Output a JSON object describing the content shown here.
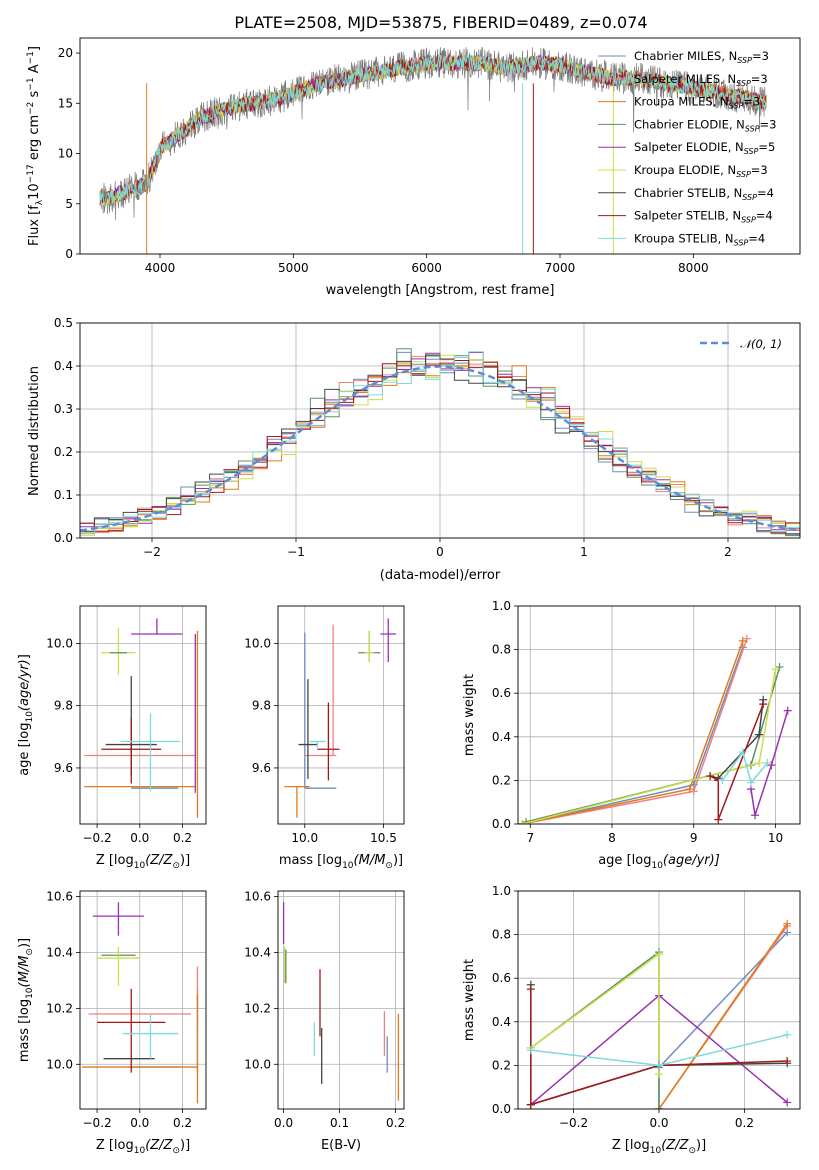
{
  "figure": {
    "title": "PLATE=2508, MJD=53875, FIBERID=0489, z=0.074"
  },
  "series_styles": [
    {
      "name": "Chabrier MILES",
      "color": "#6c8ebf"
    },
    {
      "name": "Salpeter MILES",
      "color": "#f08080"
    },
    {
      "name": "Kroupa MILES",
      "color": "#e07b1a"
    },
    {
      "name": "Chabrier ELODIE",
      "color": "#5f8f5f"
    },
    {
      "name": "Salpeter ELODIE",
      "color": "#9b30b0"
    },
    {
      "name": "Kroupa ELODIE",
      "color": "#c8e04a"
    },
    {
      "name": "Chabrier STELIB",
      "color": "#444444"
    },
    {
      "name": "Salpeter STELIB",
      "color": "#a01818"
    },
    {
      "name": "Kroupa STELIB",
      "color": "#7fd9d9"
    }
  ],
  "chart_data": [
    {
      "id": "spectrum",
      "type": "line",
      "title": "PLATE=2508, MJD=53875, FIBERID=0489, z=0.074",
      "xlabel": "wavelength [Angstrom, rest frame]",
      "ylabel_main": "Flux [f",
      "ylabel_sub": "λ",
      "ylabel_rest": "10",
      "ylabel_exp1": "−17",
      "ylabel_unit": " erg cm",
      "ylabel_exp2": "−2",
      "ylabel_s": " s",
      "ylabel_exp3": "−1",
      "ylabel_end": " A",
      "ylabel_exp4": "−1",
      "ylabel_close": "]",
      "xlim": [
        3400,
        8800
      ],
      "ylim": [
        0,
        21.5
      ],
      "xticks": [
        "4000",
        "5000",
        "6000",
        "7000",
        "8000"
      ],
      "xtick_values": [
        4000,
        5000,
        6000,
        7000,
        8000
      ],
      "yticks": [
        "0",
        "5",
        "10",
        "15",
        "20"
      ],
      "ytick_values": [
        0,
        5,
        10,
        15,
        20
      ],
      "legend": [
        {
          "label": "Chabrier MILES, N",
          "sub": "SSP",
          "suffix": "=3"
        },
        {
          "label": "Salpeter MILES, N",
          "sub": "SSP",
          "suffix": "=3"
        },
        {
          "label": "Kroupa MILES, N",
          "sub": "SSP",
          "suffix": "=3"
        },
        {
          "label": "Chabrier ELODIE, N",
          "sub": "SSP",
          "suffix": "=3"
        },
        {
          "label": "Salpeter ELODIE, N",
          "sub": "SSP",
          "suffix": "=5"
        },
        {
          "label": "Kroupa ELODIE, N",
          "sub": "SSP",
          "suffix": "=3"
        },
        {
          "label": "Chabrier STELIB, N",
          "sub": "SSP",
          "suffix": "=4"
        },
        {
          "label": "Salpeter STELIB, N",
          "sub": "SSP",
          "suffix": "=4"
        },
        {
          "label": "Kroupa STELIB, N",
          "sub": "SSP",
          "suffix": "=4"
        }
      ],
      "legend_position": "top-right",
      "continuum_x": [
        3550,
        3600,
        3700,
        3800,
        3900,
        4000,
        4100,
        4200,
        4300,
        4500,
        4700,
        4900,
        5000,
        5200,
        5400,
        5600,
        5800,
        6000,
        6200,
        6400,
        6600,
        6800,
        7000,
        7200,
        7400,
        7600,
        7800,
        8000,
        8200,
        8400,
        8550
      ],
      "continuum_y": [
        5.5,
        5.5,
        6.0,
        6.5,
        7.0,
        10.5,
        11.5,
        12.5,
        13.5,
        14.5,
        15.0,
        15.5,
        16.0,
        17.0,
        17.5,
        18.0,
        18.5,
        19.0,
        19.0,
        19.0,
        18.5,
        19.0,
        18.8,
        18.0,
        17.5,
        17.5,
        17.0,
        16.5,
        16.0,
        15.5,
        15.0
      ]
    },
    {
      "id": "residuals",
      "type": "histogram",
      "xlabel": "(data-model)/error",
      "ylabel": "Normed distribution",
      "xlim": [
        -2.5,
        2.5
      ],
      "ylim": [
        0,
        0.5
      ],
      "xticks": [
        "−2",
        "−1",
        "0",
        "1",
        "2"
      ],
      "xtick_values": [
        -2,
        -1,
        0,
        1,
        2
      ],
      "yticks": [
        "0.0",
        "0.1",
        "0.2",
        "0.3",
        "0.4",
        "0.5"
      ],
      "ytick_values": [
        0,
        0.1,
        0.2,
        0.3,
        0.4,
        0.5
      ],
      "reference_curve": {
        "label": "𝒩(0, 1)",
        "mean": 0,
        "sigma": 1,
        "color": "#5b8bd9"
      },
      "bin_width": 0.1
    },
    {
      "id": "age-vs-Z",
      "type": "errorbar",
      "xlabel": "Z [log",
      "xlabel_sub": "10",
      "xlabel_rest": "(Z/Z",
      "xlabel_sun": "⊙",
      "xlabel_end": ")]",
      "ylabel": "age  [log10(age/yr)]",
      "xlim": [
        -0.28,
        0.31
      ],
      "ylim": [
        9.42,
        10.12
      ],
      "xticks": [
        "−0.2",
        "0.0",
        "0.2"
      ],
      "xtick_values": [
        -0.2,
        0.0,
        0.2
      ],
      "yticks": [
        "9.6",
        "9.8",
        "10.0"
      ],
      "ytick_values": [
        9.6,
        9.8,
        10.0
      ],
      "points": [
        {
          "series": 0,
          "x": 0.07,
          "y": 9.535,
          "xerr": 0.11,
          "yerr_lo": 0.0,
          "yerr_hi": 0.0
        },
        {
          "series": 1,
          "x": 0.0,
          "y": 9.64,
          "xerr": 0.26,
          "yerr_lo": 0.0,
          "yerr_hi": 0.0
        },
        {
          "series": 2,
          "x": 0.0,
          "y": 9.54,
          "xerr": 0.26,
          "yerr_lo": 0.0,
          "yerr_hi": 0.0
        },
        {
          "series": 2,
          "x": 0.27,
          "y": 9.7,
          "xerr": 0.0,
          "yerr_lo": 0.26,
          "yerr_hi": 0.34
        },
        {
          "series": 4,
          "x": 0.08,
          "y": 10.03,
          "xerr": 0.12,
          "yerr_lo": 0.0,
          "yerr_hi": 0.05
        },
        {
          "series": 4,
          "x": 0.26,
          "y": 9.6,
          "xerr": 0.0,
          "yerr_lo": 0.08,
          "yerr_hi": 0.43
        },
        {
          "series": 5,
          "x": -0.1,
          "y": 9.97,
          "xerr": 0.08,
          "yerr_lo": 0.07,
          "yerr_hi": 0.08
        },
        {
          "series": 3,
          "x": -0.1,
          "y": 9.97,
          "xerr": 0.04,
          "yerr_lo": 0.0,
          "yerr_hi": 0.0
        },
        {
          "series": 6,
          "x": -0.04,
          "y": 9.675,
          "xerr": 0.12,
          "yerr_lo": 0.1,
          "yerr_hi": 0.22
        },
        {
          "series": 7,
          "x": -0.04,
          "y": 9.66,
          "xerr": 0.14,
          "yerr_lo": 0.11,
          "yerr_hi": 0.1
        },
        {
          "series": 8,
          "x": 0.05,
          "y": 9.685,
          "xerr": 0.14,
          "yerr_lo": 0.16,
          "yerr_hi": 0.09
        }
      ]
    },
    {
      "id": "age-vs-mass",
      "type": "errorbar",
      "xlabel": "mass [log",
      "xlabel_sub": "10",
      "xlabel_rest": "(M/M",
      "xlabel_sun": "⊙",
      "xlabel_end": ")]",
      "ylabel": "",
      "xlim": [
        9.83,
        10.63
      ],
      "ylim": [
        9.42,
        10.12
      ],
      "xticks": [
        "10.0",
        "10.5"
      ],
      "xtick_values": [
        10.0,
        10.5
      ],
      "yticks": [
        "9.6",
        "9.8",
        "10.0"
      ],
      "ytick_values": [
        9.6,
        9.8,
        10.0
      ],
      "points": [
        {
          "series": 0,
          "x": 10.0,
          "y": 9.535,
          "xerr": 0.0,
          "yerr_lo": 0.0,
          "yerr_hi": 0.5
        },
        {
          "series": 0,
          "x": 10.1,
          "y": 9.535,
          "xerr": 0.1,
          "yerr_lo": 0.0,
          "yerr_hi": 0.0
        },
        {
          "series": 1,
          "x": 10.18,
          "y": 9.64,
          "xerr": 0.0,
          "yerr_lo": 0.0,
          "yerr_hi": 0.42
        },
        {
          "series": 1,
          "x": 10.1,
          "y": 9.64,
          "xerr": 0.1,
          "yerr_lo": 0.0,
          "yerr_hi": 0.0
        },
        {
          "series": 2,
          "x": 9.95,
          "y": 9.54,
          "xerr": 0.08,
          "yerr_lo": 0.1,
          "yerr_hi": 0.0
        },
        {
          "series": 3,
          "x": 10.41,
          "y": 9.97,
          "xerr": 0.07,
          "yerr_lo": 0.03,
          "yerr_hi": 0.07
        },
        {
          "series": 5,
          "x": 10.41,
          "y": 9.97,
          "xerr": 0.03,
          "yerr_lo": 0.03,
          "yerr_hi": 0.07
        },
        {
          "series": 4,
          "x": 10.53,
          "y": 10.03,
          "xerr": 0.05,
          "yerr_lo": 0.09,
          "yerr_hi": 0.05
        },
        {
          "series": 6,
          "x": 10.02,
          "y": 9.675,
          "xerr": 0.06,
          "yerr_lo": 0.11,
          "yerr_hi": 0.21
        },
        {
          "series": 7,
          "x": 10.15,
          "y": 9.66,
          "xerr": 0.07,
          "yerr_lo": 0.1,
          "yerr_hi": 0.15
        },
        {
          "series": 8,
          "x": 10.08,
          "y": 9.685,
          "xerr": 0.05,
          "yerr_lo": 0.02,
          "yerr_hi": 0.0
        }
      ]
    },
    {
      "id": "massweight-vs-age",
      "type": "line",
      "xlabel": "age  [log",
      "xlabel_sub": "10",
      "xlabel_rest": "(age/yr)]",
      "ylabel": "mass weight",
      "xlim": [
        6.85,
        10.3
      ],
      "ylim": [
        0,
        1.0
      ],
      "xticks": [
        "7",
        "8",
        "9",
        "10"
      ],
      "xtick_values": [
        7,
        8,
        9,
        10
      ],
      "yticks": [
        "0.0",
        "0.2",
        "0.4",
        "0.6",
        "0.8",
        "1.0"
      ],
      "ytick_values": [
        0,
        0.2,
        0.4,
        0.6,
        0.8,
        1.0
      ],
      "series": [
        {
          "series": 0,
          "x": [
            6.9,
            9.0,
            9.6
          ],
          "y": [
            0.0,
            0.18,
            0.81
          ]
        },
        {
          "series": 1,
          "x": [
            6.9,
            9.0,
            9.65
          ],
          "y": [
            0.0,
            0.15,
            0.85
          ]
        },
        {
          "series": 2,
          "x": [
            6.9,
            8.95,
            9.6
          ],
          "y": [
            0.0,
            0.16,
            0.84
          ]
        },
        {
          "series": 3,
          "x": [
            6.95,
            9.7,
            10.05
          ],
          "y": [
            0.01,
            0.27,
            0.72
          ]
        },
        {
          "series": 4,
          "x": [
            9.7,
            9.75,
            9.95,
            10.15
          ],
          "y": [
            0.16,
            0.04,
            0.27,
            0.52
          ]
        },
        {
          "series": 5,
          "x": [
            6.9,
            9.8,
            10.0
          ],
          "y": [
            0.0,
            0.28,
            0.71
          ]
        },
        {
          "series": 6,
          "x": [
            9.2,
            9.3,
            9.8,
            9.85
          ],
          "y": [
            0.22,
            0.21,
            0.41,
            0.57
          ]
        },
        {
          "series": 7,
          "x": [
            9.2,
            9.3,
            9.3,
            9.85
          ],
          "y": [
            0.22,
            0.2,
            0.02,
            0.55
          ]
        },
        {
          "series": 8,
          "x": [
            9.35,
            9.6,
            9.7,
            9.9
          ],
          "y": [
            0.2,
            0.33,
            0.19,
            0.28
          ]
        }
      ]
    },
    {
      "id": "mass-vs-Z",
      "type": "errorbar",
      "xlabel": "Z [log",
      "xlabel_sub": "10",
      "xlabel_rest": "(Z/Z",
      "xlabel_sun": "⊙",
      "xlabel_end": ")]",
      "ylabel": "mass [log10(M/M⊙)]",
      "xlim": [
        -0.28,
        0.31
      ],
      "ylim": [
        9.84,
        10.62
      ],
      "xticks": [
        "−0.2",
        "0.0",
        "0.2"
      ],
      "xtick_values": [
        -0.2,
        0.0,
        0.2
      ],
      "yticks": [
        "10.0",
        "10.2",
        "10.4",
        "10.6"
      ],
      "ytick_values": [
        10.0,
        10.2,
        10.4,
        10.6
      ],
      "points": [
        {
          "series": 0,
          "x": 0.07,
          "y": 9.99,
          "xerr": 0.12,
          "yerr_lo": 0.0,
          "yerr_hi": 0.0
        },
        {
          "series": 0,
          "x": 0.27,
          "y": 10.1,
          "xerr": 0.0,
          "yerr_lo": 0.13,
          "yerr_hi": 0.17
        },
        {
          "series": 1,
          "x": 0.0,
          "y": 10.18,
          "xerr": 0.24,
          "yerr_lo": 0.0,
          "yerr_hi": 0.0
        },
        {
          "series": 1,
          "x": 0.27,
          "y": 10.2,
          "xerr": 0.0,
          "yerr_lo": 0.06,
          "yerr_hi": 0.15
        },
        {
          "series": 2,
          "x": 0.0,
          "y": 9.99,
          "xerr": 0.27,
          "yerr_lo": 0.0,
          "yerr_hi": 0.0
        },
        {
          "series": 2,
          "x": 0.27,
          "y": 10.05,
          "xerr": 0.0,
          "yerr_lo": 0.19,
          "yerr_hi": 0.2
        },
        {
          "series": 4,
          "x": -0.1,
          "y": 10.53,
          "xerr": 0.12,
          "yerr_lo": 0.07,
          "yerr_hi": 0.05
        },
        {
          "series": 3,
          "x": -0.1,
          "y": 10.39,
          "xerr": 0.08,
          "yerr_lo": 0.0,
          "yerr_hi": 0.0
        },
        {
          "series": 5,
          "x": -0.1,
          "y": 10.38,
          "xerr": 0.1,
          "yerr_lo": 0.1,
          "yerr_hi": 0.04
        },
        {
          "series": 6,
          "x": -0.05,
          "y": 10.02,
          "xerr": 0.12,
          "yerr_lo": 0.0,
          "yerr_hi": 0.0
        },
        {
          "series": 7,
          "x": -0.04,
          "y": 10.15,
          "xerr": 0.16,
          "yerr_lo": 0.18,
          "yerr_hi": 0.12
        },
        {
          "series": 8,
          "x": 0.05,
          "y": 10.11,
          "xerr": 0.13,
          "yerr_lo": 0.09,
          "yerr_hi": 0.07
        }
      ]
    },
    {
      "id": "mass-vs-EBV",
      "type": "errorbar",
      "xlabel": "E(B-V)",
      "ylabel": "",
      "xlim": [
        -0.01,
        0.215
      ],
      "ylim": [
        9.84,
        10.62
      ],
      "xticks": [
        "0.0",
        "0.1",
        "0.2"
      ],
      "xtick_values": [
        0.0,
        0.1,
        0.2
      ],
      "yticks": [
        "10.0",
        "10.2",
        "10.4",
        "10.6"
      ],
      "ytick_values": [
        10.0,
        10.2,
        10.4,
        10.6
      ],
      "points": [
        {
          "series": 4,
          "x": 0.0,
          "y": 10.5,
          "xerr": 0.0,
          "yerr_lo": 0.07,
          "yerr_hi": 0.08
        },
        {
          "series": 5,
          "x": 0.002,
          "y": 10.35,
          "xerr": 0.0,
          "yerr_lo": 0.06,
          "yerr_hi": 0.07
        },
        {
          "series": 3,
          "x": 0.004,
          "y": 10.35,
          "xerr": 0.0,
          "yerr_lo": 0.06,
          "yerr_hi": 0.06
        },
        {
          "series": 8,
          "x": 0.055,
          "y": 10.08,
          "xerr": 0.0,
          "yerr_lo": 0.05,
          "yerr_hi": 0.07
        },
        {
          "series": 7,
          "x": 0.065,
          "y": 10.2,
          "xerr": 0.0,
          "yerr_lo": 0.1,
          "yerr_hi": 0.14
        },
        {
          "series": 6,
          "x": 0.068,
          "y": 10.05,
          "xerr": 0.0,
          "yerr_lo": 0.12,
          "yerr_hi": 0.08
        },
        {
          "series": 1,
          "x": 0.18,
          "y": 10.19,
          "xerr": 0.0,
          "yerr_lo": 0.16,
          "yerr_hi": 0.0
        },
        {
          "series": 0,
          "x": 0.185,
          "y": 10.05,
          "xerr": 0.0,
          "yerr_lo": 0.08,
          "yerr_hi": 0.05
        },
        {
          "series": 2,
          "x": 0.205,
          "y": 10.03,
          "xerr": 0.0,
          "yerr_lo": 0.16,
          "yerr_hi": 0.15
        }
      ]
    },
    {
      "id": "massweight-vs-Z",
      "type": "line",
      "xlabel": "Z [log",
      "xlabel_sub": "10",
      "xlabel_rest": "(Z/Z",
      "xlabel_sun": "⊙",
      "xlabel_end": ")]",
      "ylabel": "mass weight",
      "xlim": [
        -0.33,
        0.33
      ],
      "ylim": [
        0,
        1.0
      ],
      "xticks": [
        "−0.2",
        "0.0",
        "0.2"
      ],
      "xtick_values": [
        -0.2,
        0.0,
        0.2
      ],
      "yticks": [
        "0.0",
        "0.2",
        "0.4",
        "0.6",
        "0.8",
        "1.0"
      ],
      "ytick_values": [
        0,
        0.2,
        0.4,
        0.6,
        0.8,
        1.0
      ],
      "series": [
        {
          "series": 0,
          "x": [
            0.0,
            0.0,
            0.3
          ],
          "y": [
            0.0,
            0.19,
            0.81
          ]
        },
        {
          "series": 1,
          "x": [
            0.0,
            0.3
          ],
          "y": [
            0.0,
            0.84
          ]
        },
        {
          "series": 2,
          "x": [
            0.0,
            0.3
          ],
          "y": [
            0.0,
            0.85
          ]
        },
        {
          "series": 3,
          "x": [
            -0.3,
            0.0,
            0.0
          ],
          "y": [
            0.28,
            0.72,
            0.0
          ]
        },
        {
          "series": 4,
          "x": [
            -0.3,
            0.0,
            0.3
          ],
          "y": [
            0.02,
            0.52,
            0.03
          ]
        },
        {
          "series": 5,
          "x": [
            -0.3,
            0.0,
            0.0
          ],
          "y": [
            0.28,
            0.71,
            0.16
          ]
        },
        {
          "series": 6,
          "x": [
            -0.3,
            -0.3,
            0.0,
            0.3
          ],
          "y": [
            0.57,
            0.02,
            0.2,
            0.21
          ]
        },
        {
          "series": 7,
          "x": [
            -0.3,
            -0.3,
            0.0,
            0.3
          ],
          "y": [
            0.55,
            0.02,
            0.2,
            0.22
          ]
        },
        {
          "series": 8,
          "x": [
            -0.3,
            0.0,
            0.3
          ],
          "y": [
            0.27,
            0.2,
            0.34
          ]
        }
      ]
    }
  ]
}
